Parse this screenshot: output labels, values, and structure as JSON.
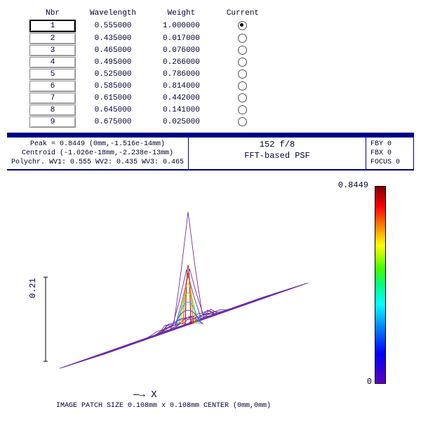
{
  "table": {
    "headers": [
      "Nbr",
      "Wavelength",
      "Weight",
      "Current"
    ],
    "rows": [
      {
        "nbr": "1",
        "wavelength": "0.555000",
        "weight": "1.000000",
        "current": true
      },
      {
        "nbr": "2",
        "wavelength": "0.435000",
        "weight": "0.017000",
        "current": false
      },
      {
        "nbr": "3",
        "wavelength": "0.465000",
        "weight": "0.076000",
        "current": false
      },
      {
        "nbr": "4",
        "wavelength": "0.495000",
        "weight": "0.266000",
        "current": false
      },
      {
        "nbr": "5",
        "wavelength": "0.525000",
        "weight": "0.786000",
        "current": false
      },
      {
        "nbr": "6",
        "wavelength": "0.585000",
        "weight": "0.814000",
        "current": false
      },
      {
        "nbr": "7",
        "wavelength": "0.615000",
        "weight": "0.442000",
        "current": false
      },
      {
        "nbr": "8",
        "wavelength": "0.645000",
        "weight": "0.141000",
        "current": false
      },
      {
        "nbr": "9",
        "wavelength": "0.675000",
        "weight": "0.025000",
        "current": false
      }
    ]
  },
  "info": {
    "peak": "Peak = 0.8449 (0mm,-1.516e-14mm)",
    "centroid": "Centroid (-1.026e-18mm,-2.238e-13mm)",
    "polychr": "Polychr. WV1: 0.555 WV2: 0.435 WV3: 0.465",
    "title1": "152 f/8",
    "title2": "FFT-based PSF",
    "right1": "FBY 0",
    "right2": "FBX 0",
    "right3": "FOCUS 0"
  },
  "plot": {
    "colorbar_max": "0.8449",
    "colorbar_min": "0",
    "y_label": "0.21",
    "x_label_arrow": "—→ X",
    "footer": "IMAGE PATCH SIZE 0.108mm x 0.108mm    CENTER (0mm,0mm)",
    "mesh_color": "#7030a0",
    "peak_colors": [
      "#b00000",
      "#ff6000",
      "#ffd000",
      "#60e000",
      "#00c0e0",
      "#4060ff",
      "#8040d0"
    ],
    "background": "#ffffff"
  }
}
